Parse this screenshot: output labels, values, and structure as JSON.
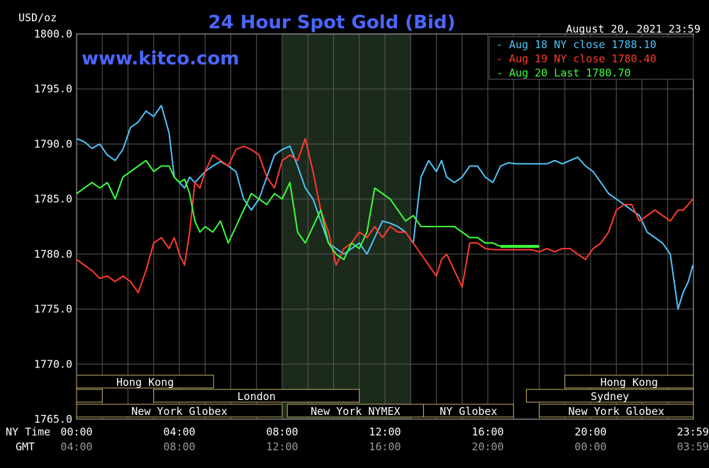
{
  "title": "24 Hour Spot Gold (Bid)",
  "unit_label": "USD/oz",
  "date_label": "August 20, 2021 23:59",
  "website": "www.kitco.com",
  "colors": {
    "background": "#000000",
    "grid": "#5a5a5a",
    "highlight_band": "#1c2a1c",
    "title": "#4a66ff",
    "aug18": "#4fc3f7",
    "aug19": "#ff3b2f",
    "aug20": "#3cff3c",
    "market_bar_border": "#c8b26a",
    "text": "#ffffff",
    "gmt_text": "#9a9a9a"
  },
  "axis_row_labels": {
    "ny_time": "NY Time",
    "gmt": "GMT"
  },
  "markets": {
    "row1": [
      {
        "label": "Hong Kong",
        "start": 0,
        "end": 5.33
      },
      {
        "label": "Hong Kong",
        "start": 19,
        "end": 24
      }
    ],
    "row2": [
      {
        "label": "",
        "start": 0,
        "end": 1.0
      },
      {
        "label": "London",
        "start": 3.0,
        "end": 11.0
      },
      {
        "label": "Sydney",
        "start": 17.5,
        "end": 24
      }
    ],
    "row3": [
      {
        "label": "New York Globex",
        "start": 0,
        "end": 8.0
      },
      {
        "label": "New York NYMEX",
        "start": 8.2,
        "end": 13.5
      },
      {
        "label": "NY Globex",
        "start": 13.5,
        "end": 17.0
      },
      {
        "label": "New York Globex",
        "start": 18.0,
        "end": 24
      }
    ]
  },
  "chart_data": {
    "type": "line",
    "title": "24 Hour Spot Gold (Bid)",
    "ylabel": "USD/oz",
    "xlabel": "NY Time",
    "ylim": [
      1765.0,
      1800.0
    ],
    "xlim": [
      0,
      24
    ],
    "yticks": [
      1800.0,
      1795.0,
      1790.0,
      1785.0,
      1780.0,
      1775.0,
      1770.0,
      1765.0
    ],
    "ytick_labels": [
      "1800.0",
      "1795.0",
      "1790.0",
      "1785.0",
      "1780.0",
      "1775.0",
      "1770.0",
      "1765.0"
    ],
    "xticks": [
      0,
      4,
      8,
      12,
      16,
      20,
      23.98
    ],
    "xtick_labels": [
      "00:00",
      "04:00",
      "08:00",
      "12:00",
      "16:00",
      "20:00",
      "23:59"
    ],
    "gmt_tick_labels": [
      "04:00",
      "08:00",
      "12:00",
      "16:00",
      "20:00",
      "00:00",
      "03:59"
    ],
    "highlight_range": [
      8.0,
      13.0
    ],
    "grid": true,
    "legend_position": "top-right",
    "series": [
      {
        "name": "Aug 18 NY close 1788.10",
        "color": "#4fc3f7",
        "x": [
          0,
          0.3,
          0.6,
          0.9,
          1.2,
          1.5,
          1.8,
          2.1,
          2.4,
          2.7,
          3.0,
          3.3,
          3.6,
          3.8,
          4.0,
          4.2,
          4.4,
          4.6,
          4.8,
          5.0,
          5.3,
          5.6,
          5.9,
          6.2,
          6.5,
          6.8,
          7.1,
          7.4,
          7.7,
          8.0,
          8.3,
          8.6,
          8.9,
          9.2,
          9.5,
          9.8,
          10.1,
          10.4,
          10.7,
          11.0,
          11.3,
          11.6,
          11.9,
          12.2,
          12.5,
          12.8,
          13.1,
          13.4,
          13.7,
          14.0,
          14.2,
          14.4,
          14.7,
          15.0,
          15.3,
          15.6,
          15.9,
          16.2,
          16.5,
          16.8,
          17.1,
          17.4,
          17.7,
          18.0,
          18.3,
          18.6,
          18.9,
          19.2,
          19.5,
          19.8,
          20.1,
          20.4,
          20.7,
          21.0,
          21.3,
          21.6,
          21.9,
          22.2,
          22.5,
          22.8,
          23.1,
          23.4,
          23.6,
          23.8,
          23.98
        ],
        "y": [
          1790.5,
          1790.2,
          1789.6,
          1790.0,
          1789.0,
          1788.5,
          1789.5,
          1791.5,
          1792.0,
          1793.0,
          1792.5,
          1793.5,
          1791.0,
          1787.0,
          1786.5,
          1786.0,
          1787.0,
          1786.5,
          1787.0,
          1787.5,
          1788.0,
          1788.4,
          1788.0,
          1787.5,
          1785.0,
          1784.0,
          1785.0,
          1787.0,
          1789.0,
          1789.5,
          1789.8,
          1788.0,
          1786.0,
          1785.0,
          1783.0,
          1781.0,
          1780.5,
          1780.0,
          1780.5,
          1781.0,
          1780.0,
          1781.5,
          1783.0,
          1782.8,
          1782.5,
          1782.0,
          1781.0,
          1787.0,
          1788.5,
          1787.5,
          1788.5,
          1787.0,
          1786.5,
          1787.0,
          1788.0,
          1788.0,
          1787.0,
          1786.5,
          1788.0,
          1788.3,
          1788.2,
          1788.2,
          1788.2,
          1788.2,
          1788.2,
          1788.5,
          1788.2,
          1788.5,
          1788.8,
          1788.0,
          1787.5,
          1786.5,
          1785.5,
          1785.0,
          1784.5,
          1784.0,
          1783.5,
          1782.0,
          1781.5,
          1781.0,
          1780.0,
          1775.0,
          1776.5,
          1777.5,
          1779.0
        ]
      },
      {
        "name": "Aug 19 NY close 1780.40",
        "color": "#ff3b2f",
        "x": [
          0,
          0.3,
          0.6,
          0.9,
          1.2,
          1.5,
          1.8,
          2.1,
          2.4,
          2.7,
          3.0,
          3.3,
          3.6,
          3.8,
          4.0,
          4.2,
          4.4,
          4.6,
          4.8,
          5.0,
          5.3,
          5.6,
          5.9,
          6.2,
          6.5,
          6.8,
          7.1,
          7.4,
          7.7,
          8.0,
          8.3,
          8.6,
          8.9,
          9.2,
          9.5,
          9.8,
          10.1,
          10.4,
          10.7,
          11.0,
          11.3,
          11.6,
          11.9,
          12.2,
          12.5,
          12.8,
          13.1,
          13.4,
          13.7,
          14.0,
          14.2,
          14.4,
          14.7,
          15.0,
          15.3,
          15.6,
          15.9,
          16.2,
          16.5,
          16.8,
          17.1,
          17.4,
          17.7,
          18.0,
          18.3,
          18.6,
          18.9,
          19.2,
          19.5,
          19.8,
          20.1,
          20.4,
          20.7,
          21.0,
          21.3,
          21.6,
          21.9,
          22.2,
          22.5,
          22.8,
          23.1,
          23.4,
          23.6,
          23.8,
          23.98
        ],
        "y": [
          1779.5,
          1779.0,
          1778.5,
          1777.8,
          1778.0,
          1777.5,
          1778.0,
          1777.5,
          1776.5,
          1778.5,
          1781.0,
          1781.5,
          1780.5,
          1781.5,
          1780.0,
          1779.0,
          1782.0,
          1786.5,
          1786.0,
          1787.5,
          1789.0,
          1788.5,
          1788.0,
          1789.5,
          1789.8,
          1789.5,
          1789.0,
          1787.0,
          1786.0,
          1788.5,
          1789.0,
          1788.5,
          1790.5,
          1787.5,
          1784.0,
          1782.0,
          1779.0,
          1780.5,
          1781.0,
          1782.0,
          1781.5,
          1782.5,
          1781.5,
          1782.5,
          1782.0,
          1782.0,
          1781.0,
          1780.0,
          1779.0,
          1778.0,
          1779.5,
          1780.0,
          1778.5,
          1777.0,
          1781.0,
          1781.0,
          1780.5,
          1780.4,
          1780.4,
          1780.4,
          1780.4,
          1780.4,
          1780.4,
          1780.2,
          1780.5,
          1780.2,
          1780.5,
          1780.5,
          1780.0,
          1779.5,
          1780.5,
          1781.0,
          1782.0,
          1784.0,
          1784.5,
          1784.5,
          1783.0,
          1783.5,
          1784.0,
          1783.5,
          1783.0,
          1784.0,
          1784.0,
          1784.5,
          1785.0
        ]
      },
      {
        "name": "Aug 20 Last 1780.70",
        "color": "#3cff3c",
        "x": [
          0,
          0.3,
          0.6,
          0.9,
          1.2,
          1.5,
          1.8,
          2.1,
          2.4,
          2.7,
          3.0,
          3.3,
          3.6,
          3.8,
          4.0,
          4.2,
          4.4,
          4.6,
          4.8,
          5.0,
          5.3,
          5.6,
          5.9,
          6.2,
          6.5,
          6.8,
          7.1,
          7.4,
          7.7,
          8.0,
          8.3,
          8.6,
          8.9,
          9.2,
          9.5,
          9.8,
          10.1,
          10.4,
          10.7,
          11.0,
          11.3,
          11.6,
          11.9,
          12.2,
          12.5,
          12.8,
          13.1,
          13.4,
          13.7,
          14.0,
          14.2,
          14.4,
          14.7,
          15.0,
          15.3,
          15.6,
          15.9,
          16.2,
          16.5,
          16.8,
          17.1,
          17.4,
          17.7,
          18.0
        ],
        "y": [
          1785.5,
          1786.0,
          1786.5,
          1786.0,
          1786.5,
          1785.0,
          1787.0,
          1787.5,
          1788.0,
          1788.5,
          1787.5,
          1788.0,
          1788.0,
          1787.0,
          1786.5,
          1786.8,
          1785.5,
          1783.0,
          1782.0,
          1782.5,
          1782.0,
          1783.0,
          1781.0,
          1782.5,
          1784.0,
          1785.5,
          1785.0,
          1784.5,
          1785.5,
          1785.0,
          1786.5,
          1782.0,
          1781.0,
          1782.5,
          1784.0,
          1781.0,
          1780.0,
          1779.5,
          1781.0,
          1780.5,
          1782.0,
          1786.0,
          1785.5,
          1785.0,
          1784.0,
          1783.0,
          1783.5,
          1782.5,
          1782.5,
          1782.5,
          1782.5,
          1782.5,
          1782.5,
          1782.0,
          1781.5,
          1781.5,
          1781.0,
          1781.0,
          1780.7,
          1780.7,
          1780.7,
          1780.7,
          1780.7,
          1780.7
        ]
      }
    ]
  }
}
